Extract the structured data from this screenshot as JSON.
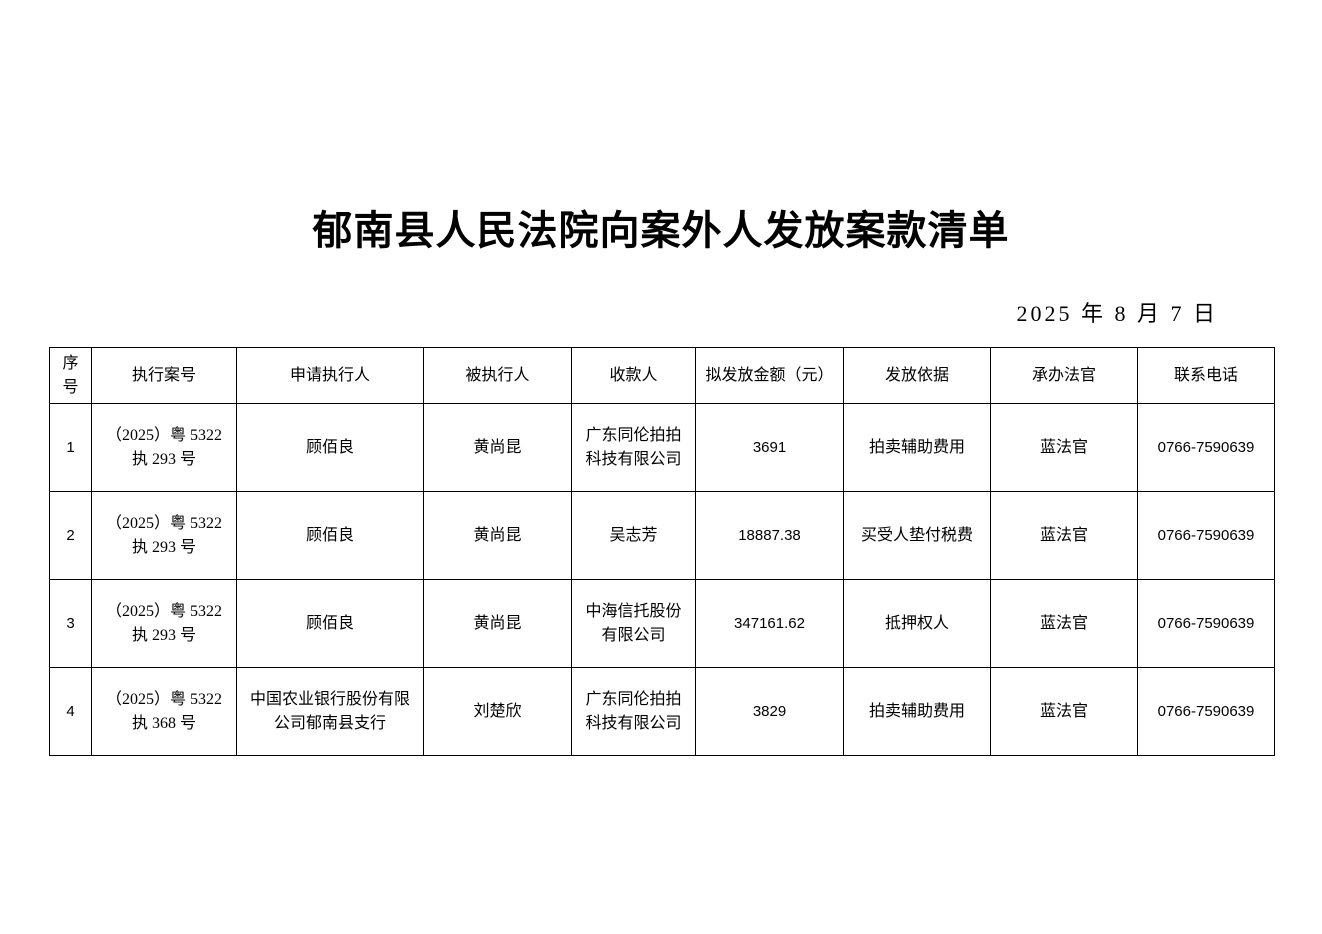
{
  "title": "郁南县人民法院向案外人发放案款清单",
  "date": "2025 年 8 月 7 日",
  "table": {
    "headers": [
      "序号",
      "执行案号",
      "申请执行人",
      "被执行人",
      "收款人",
      "拟发放金额（元）",
      "发放依据",
      "承办法官",
      "联系电话"
    ],
    "rows": [
      {
        "seq": "1",
        "case_no": "（2025）粤 5322 执 293 号",
        "applicant": "顾佰良",
        "respondent": "黄尚昆",
        "payee": "广东同伦拍拍科技有限公司",
        "amount": "3691",
        "basis": "拍卖辅助费用",
        "judge": "蓝法官",
        "phone": "0766-7590639"
      },
      {
        "seq": "2",
        "case_no": "（2025）粤 5322 执 293 号",
        "applicant": "顾佰良",
        "respondent": "黄尚昆",
        "payee": "吴志芳",
        "amount": "18887.38",
        "basis": "买受人垫付税费",
        "judge": "蓝法官",
        "phone": "0766-7590639"
      },
      {
        "seq": "3",
        "case_no": "（2025）粤 5322 执 293 号",
        "applicant": "顾佰良",
        "respondent": "黄尚昆",
        "payee": "中海信托股份有限公司",
        "amount": "347161.62",
        "basis": "抵押权人",
        "judge": "蓝法官",
        "phone": "0766-7590639"
      },
      {
        "seq": "4",
        "case_no": "（2025）粤 5322 执 368 号",
        "applicant": "中国农业银行股份有限公司郁南县支行",
        "respondent": "刘楚欣",
        "payee": "广东同伦拍拍科技有限公司",
        "amount": "3829",
        "basis": "拍卖辅助费用",
        "judge": "蓝法官",
        "phone": "0766-7590639"
      }
    ]
  }
}
